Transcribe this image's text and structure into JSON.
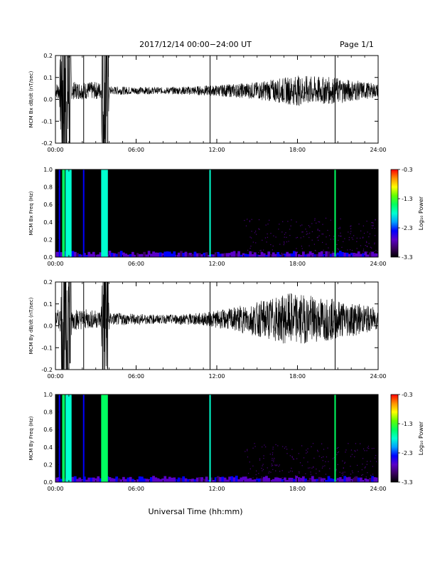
{
  "header": {
    "title": "2017/12/14  00:00−24:00 UT",
    "page": "Page 1/1"
  },
  "xaxis": {
    "label": "Universal Time (hh:mm)",
    "ticks": [
      "00:00",
      "06:00",
      "12:00",
      "18:00",
      "24:00"
    ],
    "range_hours": [
      0,
      24
    ]
  },
  "colorbar": {
    "label": "Log₁₀ Power",
    "ticks": [
      "-0.3",
      "-1.3",
      "-2.3",
      "-3.3"
    ],
    "range": [
      -3.3,
      -0.3
    ],
    "colors": [
      "#000000",
      "#3a0060",
      "#5a00c8",
      "#0000ff",
      "#00a0ff",
      "#00ffd0",
      "#00ff60",
      "#60ff00",
      "#ffff00",
      "#ff9000",
      "#ff0000"
    ]
  },
  "chart_data": [
    {
      "type": "line",
      "panel": "Bx time series",
      "ylabel": "MCM Bx dB/dt (nT/sec)",
      "ylim": [
        -0.2,
        0.2
      ],
      "yticks": [
        "0.2",
        "0.1",
        "0.0",
        "-0.1",
        "-0.2"
      ],
      "baseline": 0.04,
      "amplitude_envelope": [
        {
          "t": 0.0,
          "a": 0.03
        },
        {
          "t": 0.3,
          "a": 0.05
        },
        {
          "t": 0.5,
          "a": 0.5
        },
        {
          "t": 1.1,
          "a": 0.5
        },
        {
          "t": 1.2,
          "a": 0.04
        },
        {
          "t": 3.4,
          "a": 0.04
        },
        {
          "t": 3.5,
          "a": 0.5
        },
        {
          "t": 3.9,
          "a": 0.5
        },
        {
          "t": 4.0,
          "a": 0.02
        },
        {
          "t": 8.0,
          "a": 0.015
        },
        {
          "t": 12.0,
          "a": 0.025
        },
        {
          "t": 15.0,
          "a": 0.04
        },
        {
          "t": 18.0,
          "a": 0.07
        },
        {
          "t": 21.0,
          "a": 0.06
        },
        {
          "t": 24.0,
          "a": 0.03
        }
      ],
      "spikes": [
        {
          "t": 2.1,
          "min": -0.2,
          "max": 0.2
        },
        {
          "t": 11.5,
          "min": -0.2,
          "max": 0.2
        },
        {
          "t": 20.8,
          "min": -0.2,
          "max": 0.2
        }
      ]
    },
    {
      "type": "heatmap",
      "panel": "Bx spectrogram",
      "ylabel": "MCM Bx Freq (Hz)",
      "ylim": [
        0.0,
        1.0
      ],
      "yticks": [
        "1.0",
        "0.8",
        "0.6",
        "0.4",
        "0.2",
        "0.0"
      ],
      "bands": [
        {
          "t0": 0.5,
          "t1": 0.7,
          "level": -1.6
        },
        {
          "t0": 0.75,
          "t1": 1.2,
          "level": -1.9
        },
        {
          "t0": 3.4,
          "t1": 3.9,
          "level": -1.7
        }
      ],
      "lines": [
        {
          "t": 0.3,
          "level": -2.4
        },
        {
          "t": 2.1,
          "level": -2.3
        },
        {
          "t": 11.5,
          "level": -1.8
        },
        {
          "t": 20.8,
          "level": -1.5
        }
      ]
    },
    {
      "type": "line",
      "panel": "By time series",
      "ylabel": "MCM By dB/dt (nT/sec)",
      "ylim": [
        -0.2,
        0.2
      ],
      "yticks": [
        "0.2",
        "0.1",
        "0.0",
        "-0.1",
        "-0.2"
      ],
      "baseline": 0.03,
      "amplitude_envelope": [
        {
          "t": 0.0,
          "a": 0.03
        },
        {
          "t": 0.4,
          "a": 0.06
        },
        {
          "t": 0.5,
          "a": 0.5
        },
        {
          "t": 1.1,
          "a": 0.5
        },
        {
          "t": 1.2,
          "a": 0.05
        },
        {
          "t": 3.4,
          "a": 0.04
        },
        {
          "t": 3.5,
          "a": 0.5
        },
        {
          "t": 3.9,
          "a": 0.5
        },
        {
          "t": 4.0,
          "a": 0.03
        },
        {
          "t": 8.0,
          "a": 0.02
        },
        {
          "t": 11.0,
          "a": 0.03
        },
        {
          "t": 13.0,
          "a": 0.05
        },
        {
          "t": 15.0,
          "a": 0.08
        },
        {
          "t": 17.5,
          "a": 0.12
        },
        {
          "t": 20.0,
          "a": 0.1
        },
        {
          "t": 22.0,
          "a": 0.08
        },
        {
          "t": 24.0,
          "a": 0.05
        }
      ],
      "spikes": [
        {
          "t": 2.1,
          "min": -0.2,
          "max": 0.2
        },
        {
          "t": 11.5,
          "min": -0.2,
          "max": 0.2
        },
        {
          "t": 20.8,
          "min": -0.2,
          "max": 0.2
        }
      ]
    },
    {
      "type": "heatmap",
      "panel": "By spectrogram",
      "ylabel": "MCM By Freq (Hz)",
      "ylim": [
        0.0,
        1.0
      ],
      "yticks": [
        "1.0",
        "0.8",
        "0.6",
        "0.4",
        "0.2",
        "0.0"
      ],
      "bands": [
        {
          "t0": 0.5,
          "t1": 0.7,
          "level": -1.6
        },
        {
          "t0": 0.75,
          "t1": 1.2,
          "level": -1.7
        },
        {
          "t0": 3.4,
          "t1": 3.9,
          "level": -1.5
        }
      ],
      "lines": [
        {
          "t": 0.3,
          "level": -2.4
        },
        {
          "t": 2.1,
          "level": -2.3
        },
        {
          "t": 11.5,
          "level": -1.8
        },
        {
          "t": 20.8,
          "level": -1.4
        }
      ]
    }
  ]
}
